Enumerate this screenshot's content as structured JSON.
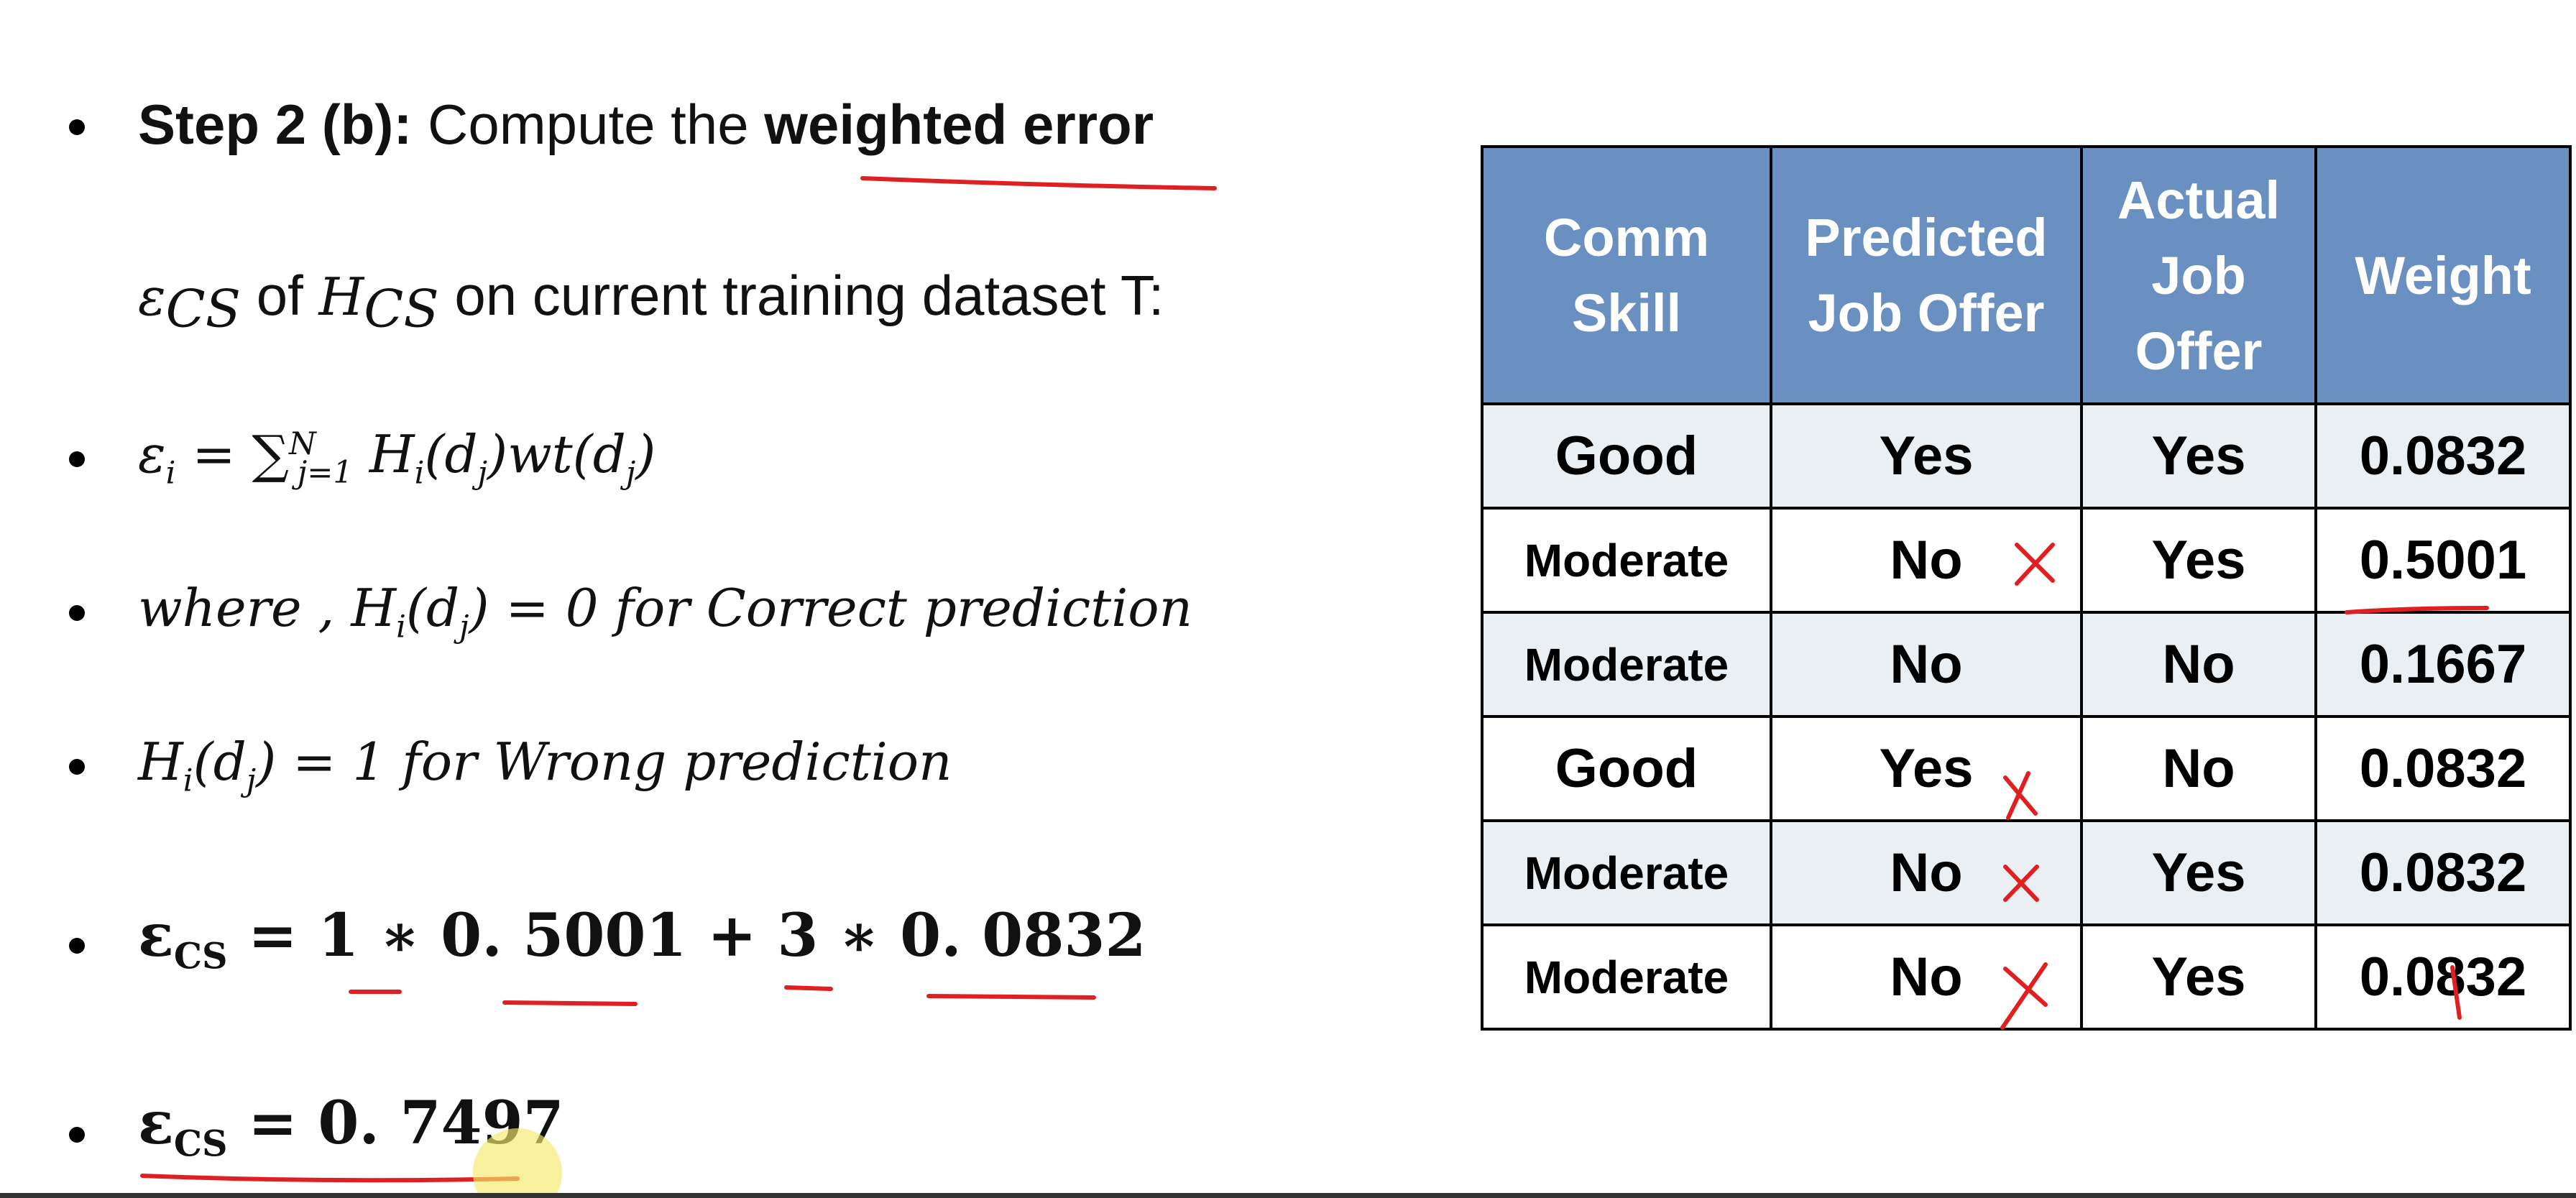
{
  "bullets": {
    "step_label": "Step 2 (b):",
    "step_text_1": "Compute the",
    "step_emph": "weighted error",
    "line2": {
      "eps": "ε",
      "eps_sub": "CS",
      "of": "of",
      "h": "H",
      "h_sub": "CS",
      "rest": "on current training dataset T:"
    },
    "formula_error": {
      "lhs": "ε",
      "lhs_sub": "i",
      "eq": "=",
      "sum": "∑",
      "sum_sup": "N",
      "sum_sub": "j=1",
      "body": "H",
      "body_sub": "i",
      "body_arg": "(d",
      "body_arg_sub": "j",
      "body_tail": ")wt(d",
      "tail_sub": "j",
      "tail_close": ")"
    },
    "where_line": {
      "prefix": "where ,",
      "h": "H",
      "h_sub": "i",
      "arg": "(d",
      "arg_sub": "j",
      "rest": ") = 0 for Correct prediction"
    },
    "wrong_line": {
      "h": "H",
      "h_sub": "i",
      "arg": "(d",
      "arg_sub": "j",
      "rest": ") = 1  for Wrong prediction"
    },
    "calc_line": {
      "eps": "ε",
      "eps_sub": "CS",
      "rest": "= 1 ∗ 0. 5001 + 3 ∗ 0. 0832"
    },
    "result_line": {
      "eps": "ε",
      "eps_sub": "CS",
      "rest": "=  0. 7497"
    }
  },
  "table": {
    "headers": [
      "Comm Skill",
      "Predicted Job Offer",
      "Actual Job Offer",
      "Weight"
    ],
    "rows": [
      [
        "Good",
        "Yes",
        "Yes",
        "0.0832"
      ],
      [
        "Moderate",
        "No",
        "Yes",
        "0.5001"
      ],
      [
        "Moderate",
        "No",
        "No",
        "0.1667"
      ],
      [
        "Good",
        "Yes",
        "No",
        "0.0832"
      ],
      [
        "Moderate",
        "No",
        "Yes",
        "0.0832"
      ],
      [
        "Moderate",
        "No",
        "Yes",
        "0.0832"
      ]
    ],
    "header_color": "#6a8fc1",
    "row_color": "#eaeff3"
  },
  "annotations": {
    "ink_color": "#e02020",
    "cursor_color": "#f5e96a"
  }
}
